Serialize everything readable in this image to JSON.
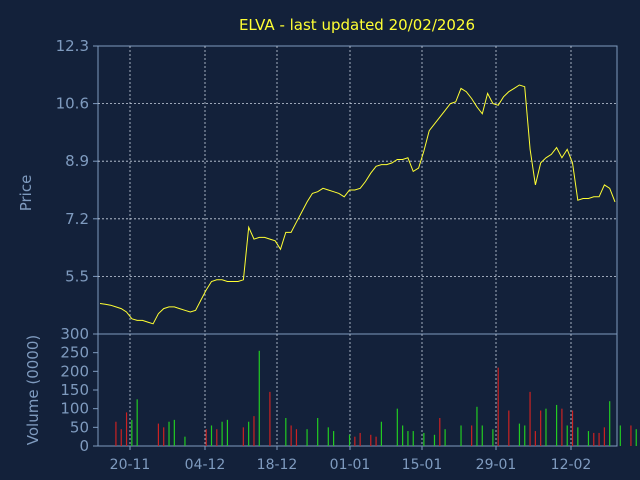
{
  "title": "ELVA - last updated 20/02/2026",
  "colors": {
    "background": "#13213a",
    "panel": "#13213a",
    "axis": "#7f9bbf",
    "grid": "#c9d3e2",
    "title": "#ffff33",
    "label": "#7f9bbf",
    "price_line": "#ffff33",
    "volume_up": "#22cc22",
    "volume_down": "#cc2222"
  },
  "chart_data": [
    {
      "type": "line",
      "ylabel": "Price",
      "ylim": [
        3.8,
        12.3
      ],
      "y_ticks": [
        12.3,
        10.6,
        8.9,
        7.2,
        5.5
      ],
      "y_tick_labels": [
        "12.3",
        "10.6",
        "8.9",
        "7.2",
        "5.5"
      ],
      "x_ticks": [
        "20-11",
        "04-12",
        "18-12",
        "01-01",
        "15-01",
        "29-01",
        "12-02"
      ],
      "grid": true,
      "series": [
        {
          "values": [
            4.7,
            4.68,
            4.65,
            4.6,
            4.55,
            4.45,
            4.25,
            4.2,
            4.2,
            4.15,
            4.1,
            4.4,
            4.55,
            4.6,
            4.6,
            4.55,
            4.5,
            4.45,
            4.5,
            4.8,
            5.1,
            5.35,
            5.4,
            5.4,
            5.35,
            5.35,
            5.35,
            5.4,
            6.95,
            6.6,
            6.65,
            6.65,
            6.6,
            6.55,
            6.3,
            6.8,
            6.8,
            7.1,
            7.4,
            7.7,
            7.95,
            8.0,
            8.1,
            8.05,
            8.0,
            7.95,
            7.85,
            8.05,
            8.05,
            8.1,
            8.3,
            8.55,
            8.75,
            8.8,
            8.8,
            8.85,
            8.95,
            8.95,
            9.0,
            8.6,
            8.7,
            9.2,
            9.8,
            10.0,
            10.2,
            10.4,
            10.6,
            10.65,
            11.05,
            10.95,
            10.75,
            10.5,
            10.3,
            10.9,
            10.6,
            10.55,
            10.8,
            10.95,
            11.05,
            11.15,
            11.1,
            9.25,
            8.2,
            8.85,
            9.0,
            9.1,
            9.3,
            9.0,
            9.25,
            8.85,
            7.75,
            7.8,
            7.8,
            7.85,
            7.85,
            8.2,
            8.1,
            7.7
          ]
        }
      ]
    },
    {
      "type": "bar",
      "ylabel": "Volume (0000)",
      "ylim": [
        0,
        300
      ],
      "y_ticks": [
        0,
        50,
        100,
        150,
        200,
        250,
        300
      ],
      "y_tick_labels": [
        "0",
        "50",
        "100",
        "150",
        "200",
        "250",
        "300"
      ],
      "series": [
        {
          "name": "up",
          "values": [
            {
              "i": 6,
              "v": 70
            },
            {
              "i": 7,
              "v": 125
            },
            {
              "i": 13,
              "v": 65
            },
            {
              "i": 14,
              "v": 70
            },
            {
              "i": 16,
              "v": 25
            },
            {
              "i": 21,
              "v": 55
            },
            {
              "i": 23,
              "v": 65
            },
            {
              "i": 24,
              "v": 70
            },
            {
              "i": 28,
              "v": 65
            },
            {
              "i": 30,
              "v": 255
            },
            {
              "i": 35,
              "v": 75
            },
            {
              "i": 39,
              "v": 45
            },
            {
              "i": 41,
              "v": 75
            },
            {
              "i": 43,
              "v": 50
            },
            {
              "i": 44,
              "v": 40
            },
            {
              "i": 47,
              "v": 30
            },
            {
              "i": 53,
              "v": 65
            },
            {
              "i": 56,
              "v": 100
            },
            {
              "i": 57,
              "v": 55
            },
            {
              "i": 58,
              "v": 40
            },
            {
              "i": 59,
              "v": 40
            },
            {
              "i": 61,
              "v": 35
            },
            {
              "i": 63,
              "v": 30
            },
            {
              "i": 65,
              "v": 45
            },
            {
              "i": 68,
              "v": 55
            },
            {
              "i": 71,
              "v": 105
            },
            {
              "i": 72,
              "v": 55
            },
            {
              "i": 74,
              "v": 45
            },
            {
              "i": 79,
              "v": 60
            },
            {
              "i": 80,
              "v": 55
            },
            {
              "i": 84,
              "v": 100
            },
            {
              "i": 86,
              "v": 110
            },
            {
              "i": 88,
              "v": 55
            },
            {
              "i": 90,
              "v": 50
            },
            {
              "i": 92,
              "v": 40
            },
            {
              "i": 96,
              "v": 120
            },
            {
              "i": 98,
              "v": 55
            },
            {
              "i": 101,
              "v": 45
            },
            {
              "i": 102,
              "v": 45
            }
          ]
        },
        {
          "name": "down",
          "values": [
            {
              "i": 3,
              "v": 65
            },
            {
              "i": 4,
              "v": 45
            },
            {
              "i": 5,
              "v": 90
            },
            {
              "i": 11,
              "v": 60
            },
            {
              "i": 12,
              "v": 50
            },
            {
              "i": 20,
              "v": 45
            },
            {
              "i": 22,
              "v": 45
            },
            {
              "i": 27,
              "v": 50
            },
            {
              "i": 29,
              "v": 80
            },
            {
              "i": 32,
              "v": 145
            },
            {
              "i": 36,
              "v": 55
            },
            {
              "i": 37,
              "v": 45
            },
            {
              "i": 48,
              "v": 25
            },
            {
              "i": 49,
              "v": 35
            },
            {
              "i": 51,
              "v": 30
            },
            {
              "i": 52,
              "v": 25
            },
            {
              "i": 64,
              "v": 75
            },
            {
              "i": 70,
              "v": 55
            },
            {
              "i": 75,
              "v": 210
            },
            {
              "i": 77,
              "v": 95
            },
            {
              "i": 81,
              "v": 145
            },
            {
              "i": 82,
              "v": 40
            },
            {
              "i": 83,
              "v": 95
            },
            {
              "i": 87,
              "v": 100
            },
            {
              "i": 89,
              "v": 95
            },
            {
              "i": 93,
              "v": 35
            },
            {
              "i": 94,
              "v": 35
            },
            {
              "i": 95,
              "v": 50
            },
            {
              "i": 100,
              "v": 55
            },
            {
              "i": 103,
              "v": 45
            }
          ]
        }
      ]
    }
  ]
}
